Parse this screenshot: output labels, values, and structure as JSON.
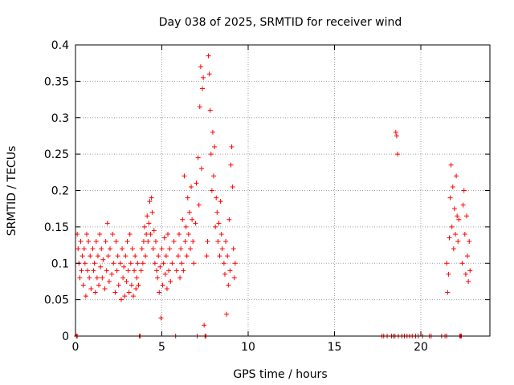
{
  "chart_data": {
    "type": "scatter",
    "title": "Day 038 of 2025, SRMTID for receiver wind",
    "xlabel": "GPS time / hours",
    "ylabel": "SRMTID / TECUs",
    "xlim": [
      0,
      24
    ],
    "ylim": [
      0,
      0.4
    ],
    "xticks": [
      0,
      5,
      10,
      15,
      20
    ],
    "xtick_labels": [
      "0",
      "5",
      "10",
      "15",
      "20"
    ],
    "yticks": [
      0,
      0.05,
      0.1,
      0.15,
      0.2,
      0.25,
      0.3,
      0.35,
      0.4
    ],
    "ytick_labels": [
      "0",
      "0.05",
      "0.1",
      "0.15",
      "0.2",
      "0.25",
      "0.3",
      "0.35",
      "0.4"
    ],
    "grid": true,
    "marker": "plus",
    "marker_color": "#ff0000",
    "series": [
      {
        "name": "SRMTID",
        "points": [
          [
            0.05,
            0.0
          ],
          [
            0.1,
            0.0
          ],
          [
            0.1,
            0.14
          ],
          [
            0.15,
            0.12
          ],
          [
            0.2,
            0.1
          ],
          [
            0.25,
            0.08
          ],
          [
            0.3,
            0.13
          ],
          [
            0.35,
            0.09
          ],
          [
            0.4,
            0.11
          ],
          [
            0.45,
            0.07
          ],
          [
            0.5,
            0.12
          ],
          [
            0.55,
            0.1
          ],
          [
            0.6,
            0.055
          ],
          [
            0.65,
            0.14
          ],
          [
            0.7,
            0.09
          ],
          [
            0.75,
            0.13
          ],
          [
            0.8,
            0.08
          ],
          [
            0.85,
            0.11
          ],
          [
            0.9,
            0.065
          ],
          [
            1.0,
            0.12
          ],
          [
            1.05,
            0.09
          ],
          [
            1.1,
            0.1
          ],
          [
            1.15,
            0.06
          ],
          [
            1.2,
            0.13
          ],
          [
            1.25,
            0.08
          ],
          [
            1.3,
            0.11
          ],
          [
            1.35,
            0.07
          ],
          [
            1.4,
            0.14
          ],
          [
            1.45,
            0.095
          ],
          [
            1.5,
            0.12
          ],
          [
            1.55,
            0.08
          ],
          [
            1.6,
            0.105
          ],
          [
            1.7,
            0.065
          ],
          [
            1.75,
            0.13
          ],
          [
            1.8,
            0.09
          ],
          [
            1.85,
            0.155
          ],
          [
            1.9,
            0.11
          ],
          [
            1.95,
            0.075
          ],
          [
            2.0,
            0.12
          ],
          [
            2.1,
            0.085
          ],
          [
            2.15,
            0.14
          ],
          [
            2.2,
            0.1
          ],
          [
            2.3,
            0.06
          ],
          [
            2.35,
            0.13
          ],
          [
            2.4,
            0.09
          ],
          [
            2.45,
            0.11
          ],
          [
            2.5,
            0.07
          ],
          [
            2.6,
            0.1
          ],
          [
            2.65,
            0.05
          ],
          [
            2.7,
            0.12
          ],
          [
            2.75,
            0.08
          ],
          [
            2.8,
            0.095
          ],
          [
            2.85,
            0.055
          ],
          [
            2.9,
            0.11
          ],
          [
            2.95,
            0.075
          ],
          [
            3.0,
            0.13
          ],
          [
            3.05,
            0.09
          ],
          [
            3.1,
            0.06
          ],
          [
            3.15,
            0.14
          ],
          [
            3.2,
            0.1
          ],
          [
            3.25,
            0.07
          ],
          [
            3.3,
            0.12
          ],
          [
            3.35,
            0.055
          ],
          [
            3.4,
            0.09
          ],
          [
            3.45,
            0.11
          ],
          [
            3.5,
            0.065
          ],
          [
            3.55,
            0.08
          ],
          [
            3.6,
            0.1
          ],
          [
            3.65,
            0.07
          ],
          [
            3.7,
            0.0
          ],
          [
            3.75,
            0.0
          ],
          [
            3.8,
            0.09
          ],
          [
            3.85,
            0.12
          ],
          [
            3.9,
            0.1
          ],
          [
            3.95,
            0.13
          ],
          [
            4.0,
            0.15
          ],
          [
            4.05,
            0.11
          ],
          [
            4.1,
            0.14
          ],
          [
            4.15,
            0.165
          ],
          [
            4.2,
            0.13
          ],
          [
            4.25,
            0.155
          ],
          [
            4.3,
            0.185
          ],
          [
            4.35,
            0.14
          ],
          [
            4.4,
            0.19
          ],
          [
            4.45,
            0.17
          ],
          [
            4.5,
            0.12
          ],
          [
            4.55,
            0.145
          ],
          [
            4.6,
            0.1
          ],
          [
            4.65,
            0.13
          ],
          [
            4.7,
            0.09
          ],
          [
            4.75,
            0.08
          ],
          [
            4.8,
            0.11
          ],
          [
            4.85,
            0.06
          ],
          [
            4.9,
            0.095
          ],
          [
            4.95,
            0.025
          ],
          [
            5.0,
            0.12
          ],
          [
            5.05,
            0.07
          ],
          [
            5.1,
            0.1
          ],
          [
            5.15,
            0.135
          ],
          [
            5.2,
            0.085
          ],
          [
            5.25,
            0.11
          ],
          [
            5.3,
            0.065
          ],
          [
            5.35,
            0.14
          ],
          [
            5.4,
            0.09
          ],
          [
            5.45,
            0.12
          ],
          [
            5.5,
            0.075
          ],
          [
            5.6,
            0.1
          ],
          [
            5.7,
            0.13
          ],
          [
            5.8,
            0.0
          ],
          [
            5.85,
            0.09
          ],
          [
            5.95,
            0.11
          ],
          [
            6.0,
            0.14
          ],
          [
            6.05,
            0.08
          ],
          [
            6.1,
            0.12
          ],
          [
            6.15,
            0.1
          ],
          [
            6.2,
            0.16
          ],
          [
            6.25,
            0.09
          ],
          [
            6.3,
            0.22
          ],
          [
            6.35,
            0.13
          ],
          [
            6.4,
            0.15
          ],
          [
            6.45,
            0.11
          ],
          [
            6.5,
            0.19
          ],
          [
            6.55,
            0.14
          ],
          [
            6.6,
            0.17
          ],
          [
            6.65,
            0.12
          ],
          [
            6.7,
            0.205
          ],
          [
            6.75,
            0.16
          ],
          [
            6.8,
            0.13
          ],
          [
            6.85,
            0.1
          ],
          [
            6.95,
            0.155
          ],
          [
            7.0,
            0.21
          ],
          [
            7.05,
            0.0
          ],
          [
            7.1,
            0.245
          ],
          [
            7.15,
            0.18
          ],
          [
            7.2,
            0.315
          ],
          [
            7.25,
            0.37
          ],
          [
            7.3,
            0.23
          ],
          [
            7.35,
            0.34
          ],
          [
            7.4,
            0.355
          ],
          [
            7.45,
            0.015
          ],
          [
            7.5,
            0.0
          ],
          [
            7.55,
            0.0
          ],
          [
            7.6,
            0.11
          ],
          [
            7.65,
            0.13
          ],
          [
            7.7,
            0.385
          ],
          [
            7.75,
            0.36
          ],
          [
            7.8,
            0.31
          ],
          [
            7.85,
            0.25
          ],
          [
            7.9,
            0.2
          ],
          [
            7.95,
            0.28
          ],
          [
            8.0,
            0.22
          ],
          [
            8.05,
            0.26
          ],
          [
            8.1,
            0.15
          ],
          [
            8.15,
            0.19
          ],
          [
            8.2,
            0.17
          ],
          [
            8.25,
            0.13
          ],
          [
            8.3,
            0.155
          ],
          [
            8.35,
            0.11
          ],
          [
            8.4,
            0.185
          ],
          [
            8.45,
            0.14
          ],
          [
            8.5,
            0.12
          ],
          [
            8.6,
            0.1
          ],
          [
            8.65,
            0.085
          ],
          [
            8.7,
            0.13
          ],
          [
            8.75,
            0.03
          ],
          [
            8.8,
            0.11
          ],
          [
            8.85,
            0.07
          ],
          [
            8.9,
            0.16
          ],
          [
            8.95,
            0.09
          ],
          [
            9.0,
            0.235
          ],
          [
            9.05,
            0.26
          ],
          [
            9.1,
            0.205
          ],
          [
            9.15,
            0.12
          ],
          [
            9.2,
            0.08
          ],
          [
            9.25,
            0.1
          ],
          [
            17.75,
            0.0
          ],
          [
            17.85,
            0.0
          ],
          [
            18.05,
            0.0
          ],
          [
            18.3,
            0.0
          ],
          [
            18.4,
            0.0
          ],
          [
            18.5,
            0.0
          ],
          [
            18.55,
            0.28
          ],
          [
            18.6,
            0.275
          ],
          [
            18.65,
            0.25
          ],
          [
            18.7,
            0.0
          ],
          [
            18.9,
            0.0
          ],
          [
            19.05,
            0.0
          ],
          [
            19.2,
            0.0
          ],
          [
            19.35,
            0.0
          ],
          [
            19.5,
            0.0
          ],
          [
            19.7,
            0.0
          ],
          [
            19.85,
            0.0
          ],
          [
            20.1,
            0.0
          ],
          [
            20.5,
            0.0
          ],
          [
            20.6,
            0.0
          ],
          [
            21.2,
            0.0
          ],
          [
            21.4,
            0.0
          ],
          [
            21.5,
            0.0
          ],
          [
            21.5,
            0.1
          ],
          [
            21.55,
            0.06
          ],
          [
            21.6,
            0.085
          ],
          [
            21.65,
            0.135
          ],
          [
            21.7,
            0.19
          ],
          [
            21.75,
            0.235
          ],
          [
            21.8,
            0.15
          ],
          [
            21.85,
            0.205
          ],
          [
            21.9,
            0.12
          ],
          [
            21.95,
            0.175
          ],
          [
            22.0,
            0.14
          ],
          [
            22.05,
            0.22
          ],
          [
            22.1,
            0.165
          ],
          [
            22.15,
            0.13
          ],
          [
            22.2,
            0.16
          ],
          [
            22.25,
            0.0
          ],
          [
            22.3,
            0.0
          ],
          [
            22.35,
            0.0
          ],
          [
            22.4,
            0.1
          ],
          [
            22.45,
            0.18
          ],
          [
            22.5,
            0.2
          ],
          [
            22.55,
            0.14
          ],
          [
            22.6,
            0.085
          ],
          [
            22.65,
            0.165
          ],
          [
            22.7,
            0.11
          ],
          [
            22.75,
            0.075
          ],
          [
            22.8,
            0.13
          ],
          [
            22.85,
            0.09
          ]
        ]
      }
    ]
  }
}
